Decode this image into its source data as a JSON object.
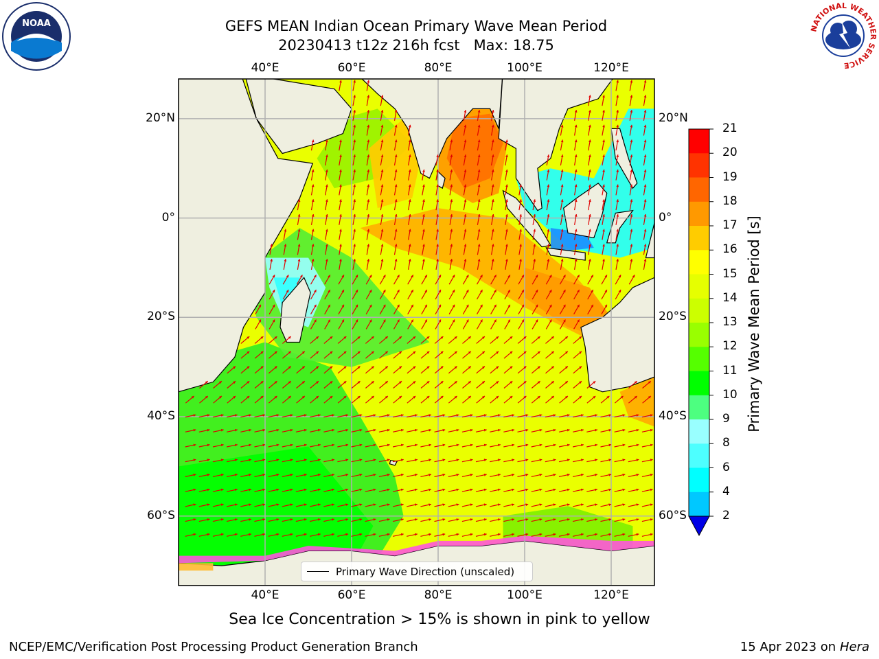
{
  "title": {
    "line1": "GEFS MEAN Indian Ocean Primary Wave Mean Period",
    "line2": "20230413 t12z 216h fcst   Max: 18.75"
  },
  "map": {
    "lon_labels": [
      "40°E",
      "60°E",
      "80°E",
      "100°E",
      "120°E"
    ],
    "lat_labels": [
      "20°N",
      "0°",
      "20°S",
      "40°S",
      "60°S"
    ],
    "lon_range": [
      20,
      130
    ],
    "lat_range": [
      -74,
      28
    ],
    "land_color": "#efefe0",
    "arrow_color": "#e00000",
    "legend_label": "Primary Wave Direction (unscaled)"
  },
  "colorbar": {
    "label": "Primary Wave Mean Period [s]",
    "ticks": [
      "21",
      "20",
      "19",
      "18",
      "17",
      "16",
      "15",
      "14",
      "13",
      "12",
      "11",
      "10",
      "9",
      "8",
      "6",
      "4",
      "2"
    ],
    "colors": [
      "#0000e6",
      "#0080ff",
      "#00c8ff",
      "#00ffff",
      "#4dffff",
      "#99ffff",
      "#4dff80",
      "#00ff00",
      "#55ff00",
      "#99ff00",
      "#ccff00",
      "#e6ff00",
      "#ffff00",
      "#ffcc00",
      "#ff9900",
      "#ff6600",
      "#ff3300",
      "#ff0000"
    ]
  },
  "note": "Sea Ice Concentration > 15% is shown in pink to yellow",
  "footer": {
    "left": "NCEP/EMC/Verification Post Processing Product Generation Branch",
    "right_date": "15 Apr 2023 on ",
    "right_host": "Hera"
  },
  "logos": {
    "noaa": "NOAA",
    "nws_ring": "NATIONAL WEATHER SERVICE"
  }
}
